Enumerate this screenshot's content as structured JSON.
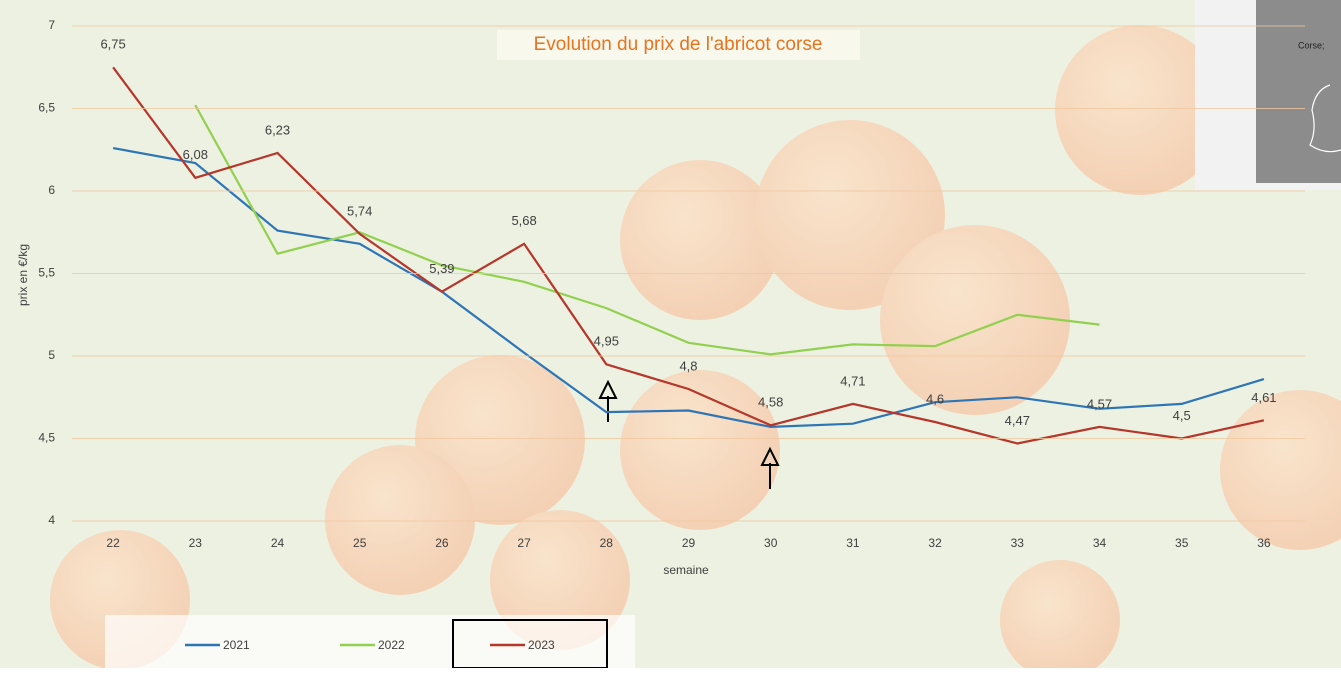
{
  "chart_data": {
    "type": "line",
    "title": "Evolution du prix de l'abricot corse",
    "x_label": "semaine",
    "y_label": "prix en €/kg",
    "inset_label": "Corse;",
    "categories": [
      "22",
      "23",
      "24",
      "25",
      "26",
      "27",
      "28",
      "29",
      "30",
      "31",
      "32",
      "33",
      "34",
      "35",
      "36"
    ],
    "ylim": [
      4,
      7
    ],
    "yticks": [
      4,
      {
        "value": 4.5,
        "label": "4,5"
      },
      5,
      {
        "value": 5.5,
        "label": "5,5"
      },
      6,
      {
        "value": 6.5,
        "label": "6,5"
      },
      7
    ],
    "grid": true,
    "legend": "bottom-left",
    "series": [
      {
        "name": "2021",
        "color": "#2e75b6",
        "values": [
          6.26,
          6.17,
          5.76,
          5.68,
          5.39,
          5.02,
          4.66,
          4.67,
          4.57,
          4.59,
          4.72,
          4.75,
          4.68,
          4.71,
          4.86
        ]
      },
      {
        "name": "2022",
        "color": "#92d050",
        "values": [
          null,
          6.52,
          5.62,
          5.75,
          5.55,
          5.45,
          5.29,
          5.08,
          5.01,
          5.07,
          5.06,
          5.25,
          5.19,
          null,
          null
        ]
      },
      {
        "name": "2023",
        "color": "#b5362a",
        "values": [
          6.75,
          6.08,
          6.23,
          5.74,
          5.39,
          5.68,
          4.95,
          4.8,
          4.58,
          4.71,
          4.6,
          4.47,
          4.57,
          4.5,
          4.61
        ],
        "value_labels": [
          "6,75",
          "6,08",
          "6,23",
          "5,74",
          "5,39",
          "5,68",
          "4,95",
          "4,8",
          "4,58",
          "4,71",
          "4,6",
          "4,47",
          "4,57",
          "4,5",
          "4,61"
        ]
      }
    ]
  }
}
